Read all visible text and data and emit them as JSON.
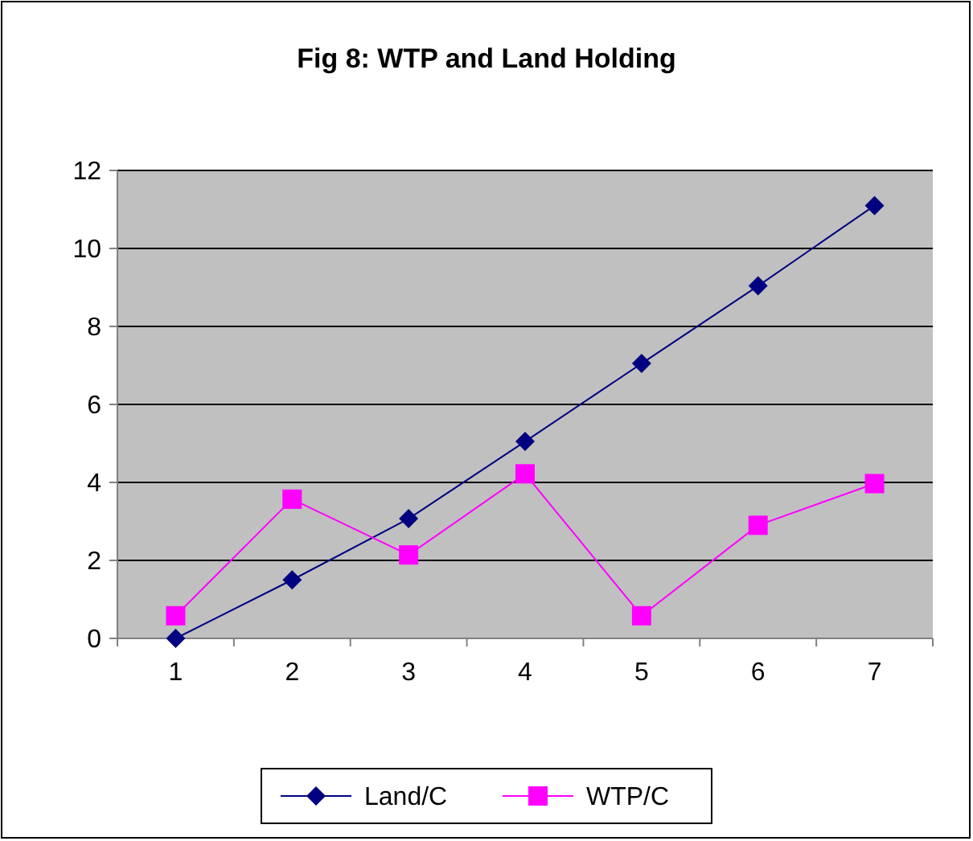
{
  "chart_data": {
    "type": "line",
    "title": "Fig 8: WTP and Land Holding",
    "categories": [
      "1",
      "2",
      "3",
      "4",
      "5",
      "6",
      "7"
    ],
    "series": [
      {
        "name": "Land/C",
        "color": "#000080",
        "marker": "diamond",
        "values": [
          0,
          1.5,
          3.07,
          5.05,
          7.05,
          9.04,
          11.1
        ]
      },
      {
        "name": "WTP/C",
        "color": "#ff00ff",
        "marker": "square",
        "values": [
          0.58,
          3.57,
          2.14,
          4.22,
          0.58,
          2.9,
          3.97
        ]
      }
    ],
    "ylim": [
      0,
      12
    ],
    "yticks": [
      0,
      2,
      4,
      6,
      8,
      10,
      12
    ],
    "grid": "y",
    "legend": "bottom"
  }
}
